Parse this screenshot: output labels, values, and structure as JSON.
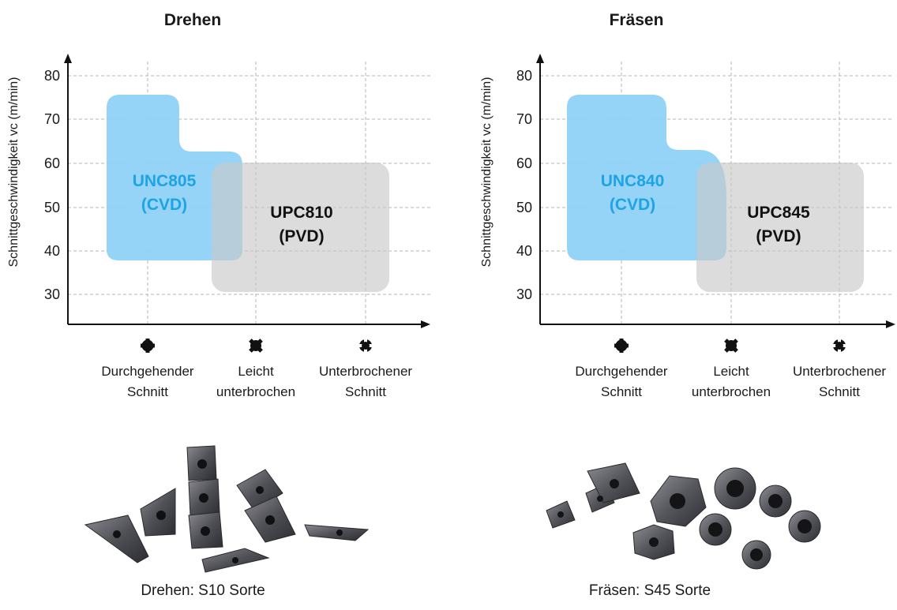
{
  "colors": {
    "cvd": "#8fd2f6",
    "pvd": "#c9c9c9",
    "cvd_text": "#1ea3e6",
    "pvd_text": "#111111",
    "grid": "#b5b5b5",
    "axis": "#111111"
  },
  "icons": [
    "continuous-cut-icon",
    "light-interrupted-cut-icon",
    "interrupted-cut-icon"
  ],
  "chart_data": [
    {
      "type": "area",
      "title": "Drehen",
      "ylabel": "Schnittgeschwindigkeit vc (m/min)",
      "ylim": [
        24,
        82
      ],
      "yticks": [
        30,
        40,
        50,
        60,
        70,
        80
      ],
      "categories": [
        "Durchgehender Schnitt",
        "Leicht unterbrochen",
        "Unterbrochener Schnitt"
      ],
      "category_lines": [
        [
          "Durchgehender",
          "Schnitt"
        ],
        [
          "Leicht",
          "unterbrochen"
        ],
        [
          "Unterbrochener",
          "Schnitt"
        ]
      ],
      "grid": true,
      "regions": [
        {
          "name": "UNC805",
          "label_lines": [
            "UNC805",
            "(CVD)"
          ],
          "coating": "CVD"
        },
        {
          "name": "UPC810",
          "label_lines": [
            "UPC810",
            "(PVD)"
          ],
          "coating": "PVD"
        }
      ],
      "caption": "Drehen: S10 Sorte"
    },
    {
      "type": "area",
      "title": "Fräsen",
      "ylabel": "Schnittgeschwindigkeit vc (m/min)",
      "ylim": [
        24,
        82
      ],
      "yticks": [
        30,
        40,
        50,
        60,
        70,
        80
      ],
      "categories": [
        "Durchgehender Schnitt",
        "Leicht unterbrochen",
        "Unterbrochener Schnitt"
      ],
      "category_lines": [
        [
          "Durchgehender",
          "Schnitt"
        ],
        [
          "Leicht",
          "unterbrochen"
        ],
        [
          "Unterbrochener",
          "Schnitt"
        ]
      ],
      "grid": true,
      "regions": [
        {
          "name": "UNC840",
          "label_lines": [
            "UNC840",
            "(CVD)"
          ],
          "coating": "CVD"
        },
        {
          "name": "UPC845",
          "label_lines": [
            "UPC845",
            "(PVD)"
          ],
          "coating": "PVD"
        }
      ],
      "caption": "Fräsen: S45 Sorte"
    }
  ]
}
